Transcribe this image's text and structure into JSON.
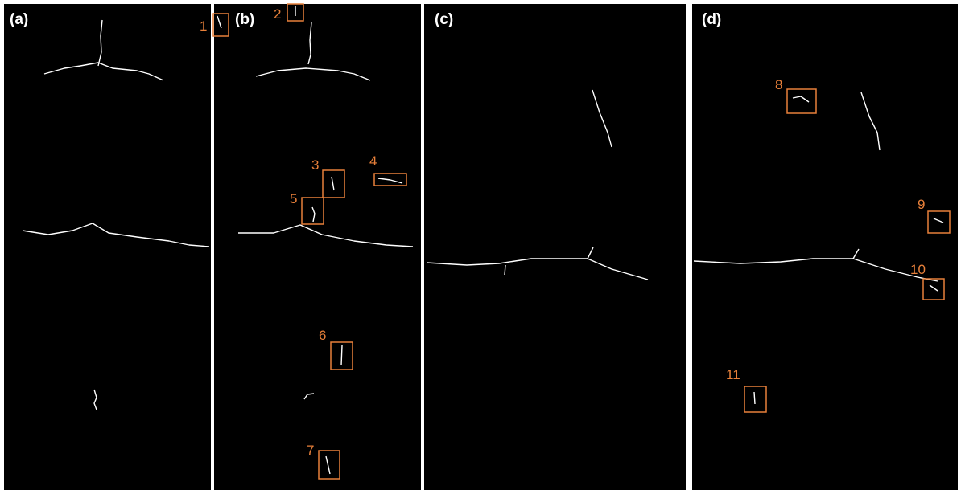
{
  "panels": [
    {
      "label": "(a)"
    },
    {
      "label": "(b)"
    },
    {
      "label": "(c)"
    },
    {
      "label": "(d)"
    }
  ],
  "boxes": [
    {
      "label": "1"
    },
    {
      "label": "2"
    },
    {
      "label": "3"
    },
    {
      "label": "4"
    },
    {
      "label": "5"
    },
    {
      "label": "6"
    },
    {
      "label": "7"
    },
    {
      "label": "8"
    },
    {
      "label": "9"
    },
    {
      "label": "10"
    },
    {
      "label": "11"
    }
  ]
}
